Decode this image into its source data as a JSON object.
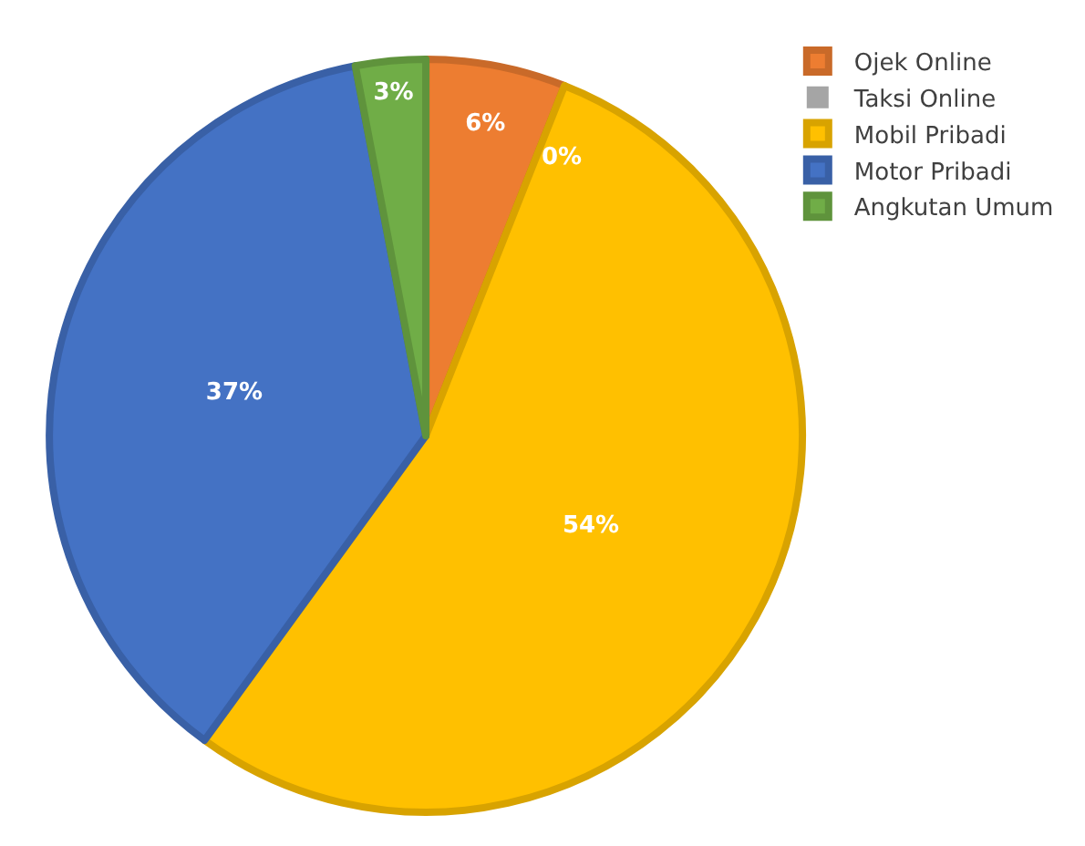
{
  "chart_data": {
    "type": "pie",
    "categories": [
      "Ojek Online",
      "Taksi Online",
      "Mobil Pribadi",
      "Motor Pribadi",
      "Angkutan Umum"
    ],
    "values": [
      6,
      0,
      54,
      37,
      3
    ],
    "colors": [
      "#ed7d31",
      "#a5a5a5",
      "#ffc000",
      "#4472c4",
      "#70ad47"
    ],
    "value_labels": [
      "6%",
      "0%",
      "54%",
      "37%",
      "3%"
    ],
    "legend": "top right"
  }
}
